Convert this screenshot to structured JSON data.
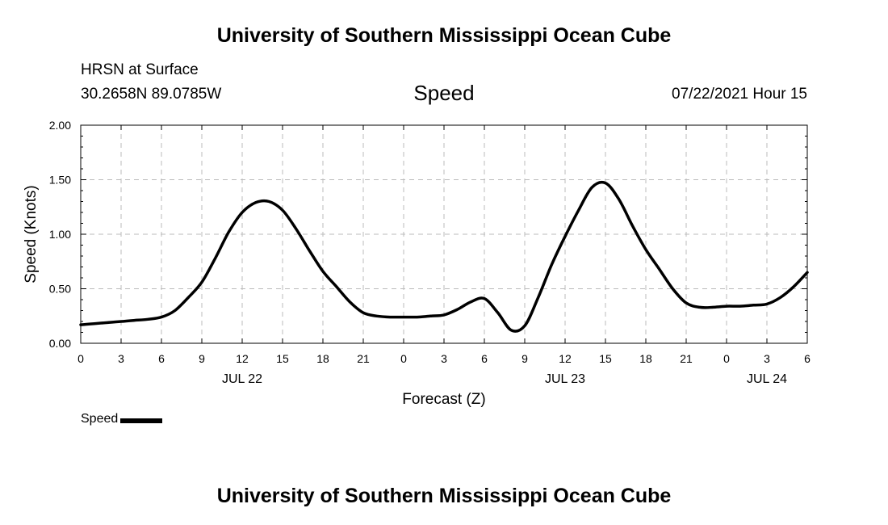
{
  "header": {
    "title": "University of Southern Mississippi Ocean Cube",
    "station": "HRSN at Surface",
    "coords": "30.2658N  89.0785W",
    "variable": "Speed",
    "datetime": "07/22/2021 Hour 15"
  },
  "footer": {
    "title": "University of Southern Mississippi Ocean Cube"
  },
  "chart_data": {
    "type": "line",
    "title": "Speed",
    "xlabel": "Forecast (Z)",
    "ylabel": "Speed (Knots)",
    "ylim": [
      0,
      2.0
    ],
    "xlim": [
      0,
      54
    ],
    "x_ticks": [
      0,
      3,
      6,
      9,
      12,
      15,
      18,
      21,
      24,
      27,
      30,
      33,
      36,
      39,
      42,
      45,
      48,
      51,
      54
    ],
    "x_tick_labels": [
      "0",
      "3",
      "6",
      "9",
      "12",
      "15",
      "18",
      "21",
      "0",
      "3",
      "6",
      "9",
      "12",
      "15",
      "18",
      "21",
      "0",
      "3",
      "6"
    ],
    "y_ticks": [
      0,
      0.5,
      1.0,
      1.5,
      2.0
    ],
    "y_tick_labels": [
      "0.00",
      "0.50",
      "1.00",
      "1.50",
      "2.00"
    ],
    "date_labels": [
      {
        "x": 12,
        "label": "JUL 22"
      },
      {
        "x": 36,
        "label": "JUL 23"
      },
      {
        "x": 51,
        "label": "JUL 24"
      }
    ],
    "grid": true,
    "legend": "bottom-left",
    "series": [
      {
        "name": "Speed",
        "color": "#000000",
        "x": [
          0,
          1,
          2,
          3,
          4,
          5,
          6,
          7,
          8,
          9,
          10,
          11,
          12,
          13,
          14,
          15,
          16,
          17,
          18,
          19,
          20,
          21,
          22,
          23,
          24,
          25,
          26,
          27,
          28,
          29,
          30,
          31,
          32,
          33,
          34,
          35,
          36,
          37,
          38,
          39,
          40,
          41,
          42,
          43,
          44,
          45,
          46,
          47,
          48,
          49,
          50,
          51,
          52,
          53,
          54
        ],
        "values": [
          0.17,
          0.18,
          0.19,
          0.2,
          0.21,
          0.22,
          0.24,
          0.3,
          0.42,
          0.56,
          0.78,
          1.02,
          1.2,
          1.29,
          1.3,
          1.22,
          1.05,
          0.85,
          0.66,
          0.52,
          0.38,
          0.28,
          0.25,
          0.24,
          0.24,
          0.24,
          0.25,
          0.26,
          0.31,
          0.38,
          0.41,
          0.28,
          0.12,
          0.16,
          0.42,
          0.72,
          0.98,
          1.22,
          1.43,
          1.47,
          1.32,
          1.08,
          0.86,
          0.68,
          0.5,
          0.37,
          0.33,
          0.33,
          0.34,
          0.34,
          0.35,
          0.36,
          0.42,
          0.52,
          0.65
        ]
      }
    ]
  }
}
